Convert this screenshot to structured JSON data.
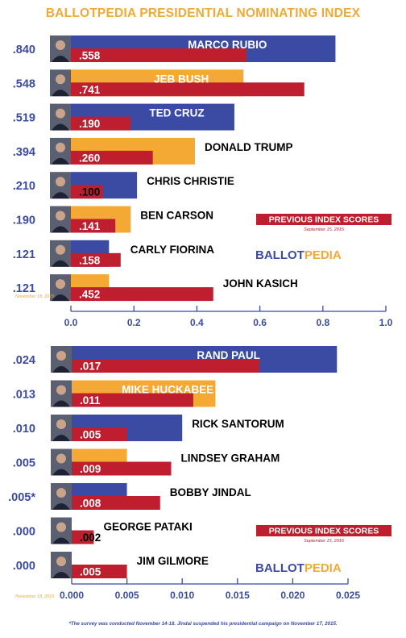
{
  "title": "BALLOTPEDIA PRESIDENTIAL NOMINATING INDEX",
  "footnote": "*The survey was conducted November 14-18. Jindal suspended his presidential campaign on November 17, 2015.",
  "colors": {
    "title": "#f0a936",
    "blue_bar": "#3b4ba3",
    "orange_bar": "#f5a935",
    "red_bar": "#be1e2d",
    "index_text": "#3b4ba3",
    "axis": "#3b4ba3",
    "date_note": "#f0a936",
    "badge_bg": "#be1e2d",
    "badge_date": "#be1e2d",
    "logo_ballot": "#3b4ba3",
    "logo_pedia": "#f5a935"
  },
  "chart_data": [
    {
      "type": "bar",
      "orientation": "horizontal",
      "xlim": [
        0,
        1
      ],
      "tick_labels": [
        "0.0",
        "0.2",
        "0.4",
        "0.6",
        "0.8",
        "1.0"
      ],
      "tick_values": [
        0,
        0.2,
        0.4,
        0.6,
        0.8,
        1.0
      ],
      "date_note": "November 18, 2015",
      "legend_badge": {
        "label": "PREVIOUS INDEX SCORES",
        "date": "September 15, 2015"
      },
      "logo": {
        "ballot": "BALLOT",
        "pedia": "PEDIA"
      },
      "candidates": [
        {
          "name": "MARCO RUBIO",
          "current": 0.84,
          "current_label": ".840",
          "previous": 0.558,
          "previous_label": ".558",
          "color": "blue"
        },
        {
          "name": "JEB BUSH",
          "current": 0.548,
          "current_label": ".548",
          "previous": 0.741,
          "previous_label": ".741",
          "color": "orange"
        },
        {
          "name": "TED CRUZ",
          "current": 0.519,
          "current_label": ".519",
          "previous": 0.19,
          "previous_label": ".190",
          "color": "blue"
        },
        {
          "name": "DONALD TRUMP",
          "current": 0.394,
          "current_label": ".394",
          "previous": 0.26,
          "previous_label": ".260",
          "color": "orange"
        },
        {
          "name": "CHRIS CHRISTIE",
          "current": 0.21,
          "current_label": ".210",
          "previous": 0.1,
          "previous_label": ".100",
          "color": "blue"
        },
        {
          "name": "BEN CARSON",
          "current": 0.19,
          "current_label": ".190",
          "previous": 0.141,
          "previous_label": ".141",
          "color": "orange"
        },
        {
          "name": "CARLY FIORINA",
          "current": 0.121,
          "current_label": ".121",
          "previous": 0.158,
          "previous_label": ".158",
          "color": "blue"
        },
        {
          "name": "JOHN KASICH",
          "current": 0.121,
          "current_label": ".121",
          "previous": 0.452,
          "previous_label": ".452",
          "color": "orange"
        }
      ]
    },
    {
      "type": "bar",
      "orientation": "horizontal",
      "xlim": [
        0,
        0.025
      ],
      "tick_labels": [
        "0.000",
        "0.005",
        "0.010",
        "0.015",
        "0.020",
        "0.025"
      ],
      "tick_values": [
        0,
        0.005,
        0.01,
        0.015,
        0.02,
        0.025
      ],
      "date_note": "November 18, 2015",
      "legend_badge": {
        "label": "PREVIOUS INDEX SCORES",
        "date": "September 15, 2015"
      },
      "logo": {
        "ballot": "BALLOT",
        "pedia": "PEDIA"
      },
      "candidates": [
        {
          "name": "RAND PAUL",
          "current": 0.024,
          "current_label": ".024",
          "previous": 0.017,
          "previous_label": ".017",
          "color": "blue"
        },
        {
          "name": "MIKE HUCKABEE",
          "current": 0.013,
          "current_label": ".013",
          "previous": 0.011,
          "previous_label": ".011",
          "color": "orange"
        },
        {
          "name": "RICK SANTORUM",
          "current": 0.01,
          "current_label": ".010",
          "previous": 0.005,
          "previous_label": ".005",
          "color": "blue"
        },
        {
          "name": "LINDSEY GRAHAM",
          "current": 0.005,
          "current_label": ".005",
          "previous": 0.009,
          "previous_label": ".009",
          "color": "orange"
        },
        {
          "name": "BOBBY JINDAL",
          "current": 0.005,
          "current_label": ".005*",
          "previous": 0.008,
          "previous_label": ".008",
          "color": "blue"
        },
        {
          "name": "GEORGE PATAKI",
          "current": 0.0,
          "current_label": ".000",
          "previous": 0.002,
          "previous_label": ".002",
          "color": "orange"
        },
        {
          "name": "JIM GILMORE",
          "current": 0.0,
          "current_label": ".000",
          "previous": 0.005,
          "previous_label": ".005",
          "color": "blue"
        }
      ]
    }
  ]
}
